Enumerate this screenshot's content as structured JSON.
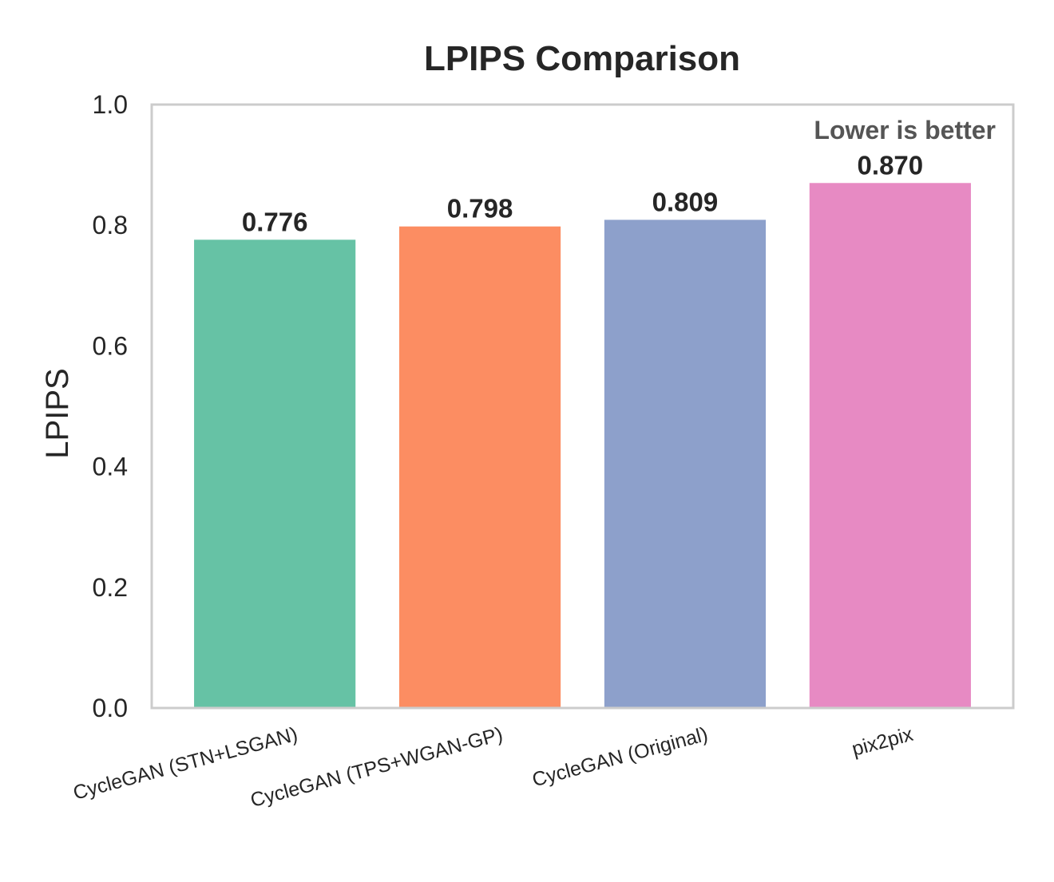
{
  "chart_data": {
    "type": "bar",
    "title": "LPIPS Comparison",
    "xlabel": "",
    "ylabel": "LPIPS",
    "ylim": [
      0,
      1.0
    ],
    "yticks": [
      "0.0",
      "0.2",
      "0.4",
      "0.6",
      "0.8",
      "1.0"
    ],
    "annotation": "Lower is better",
    "grid": false,
    "categories": [
      "CycleGAN (STN+LSGAN)",
      "CycleGAN (TPS+WGAN-GP)",
      "CycleGAN (Original)",
      "pix2pix"
    ],
    "values": [
      0.776,
      0.798,
      0.809,
      0.87
    ],
    "value_labels": [
      "0.776",
      "0.798",
      "0.809",
      "0.870"
    ],
    "colors": [
      "#66c2a5",
      "#fc8d62",
      "#8da0cb",
      "#e78ac3"
    ]
  }
}
